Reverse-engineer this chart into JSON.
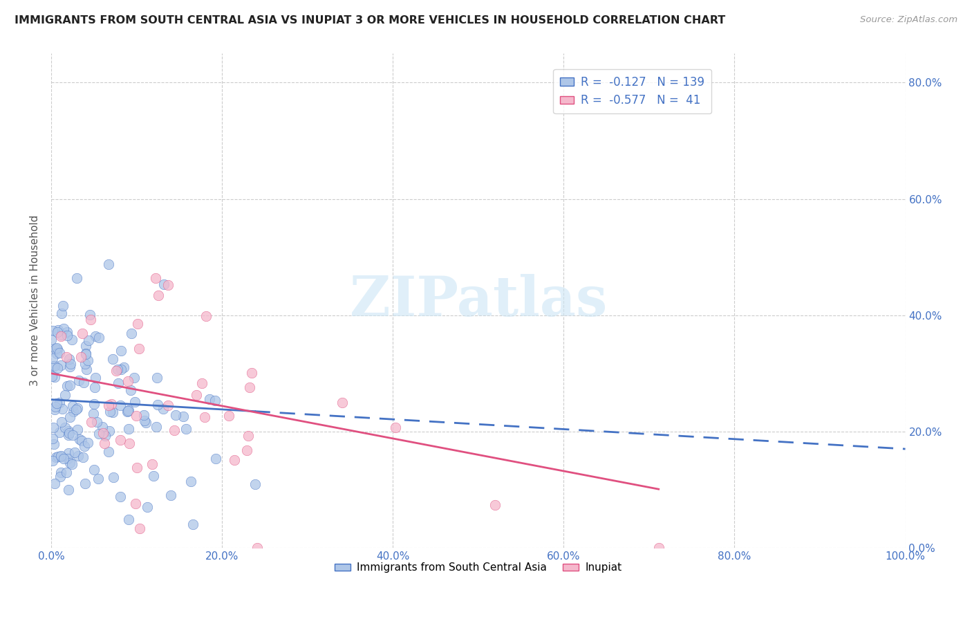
{
  "title": "IMMIGRANTS FROM SOUTH CENTRAL ASIA VS INUPIAT 3 OR MORE VEHICLES IN HOUSEHOLD CORRELATION CHART",
  "source": "Source: ZipAtlas.com",
  "legend_label1": "Immigrants from South Central Asia",
  "legend_label2": "Inupiat",
  "r1": -0.127,
  "n1": 139,
  "r2": -0.577,
  "n2": 41,
  "color_blue": "#aec6e8",
  "color_pink": "#f5b8cc",
  "line_blue": "#4472c4",
  "line_pink": "#e05080",
  "watermark_text": "ZIPatlas",
  "watermark_color": "#cce5f5",
  "title_color": "#222222",
  "tick_color_right": "#4472c4",
  "ylabel_color": "#555555",
  "source_color": "#999999",
  "grid_color": "#cccccc",
  "background_color": "#ffffff",
  "xlim": [
    0.0,
    1.0
  ],
  "ylim": [
    0.0,
    0.85
  ],
  "seed_blue": 42,
  "seed_pink": 123
}
